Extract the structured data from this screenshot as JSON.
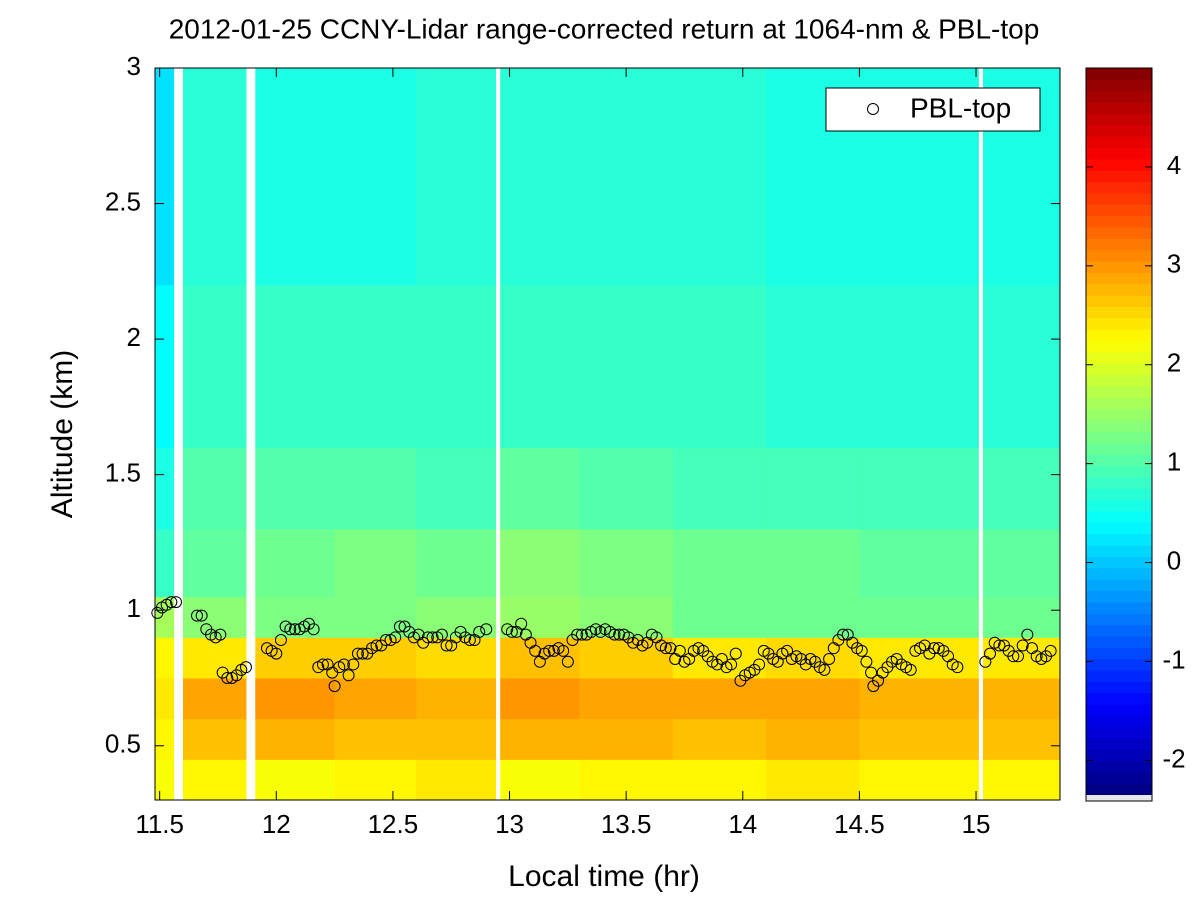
{
  "chart_data": {
    "type": "heatmap",
    "title": "2012-01-25 CCNY-Lidar range-corrected return at 1064-nm & PBL-top",
    "x_label": "Local time (hr)",
    "y_label": "Altitude (km)",
    "xlim": [
      11.48,
      15.36
    ],
    "ylim": [
      0.3,
      3
    ],
    "xticks": [
      11.5,
      12,
      12.5,
      13,
      13.5,
      14,
      14.5,
      15
    ],
    "yticks": [
      0.5,
      1,
      1.5,
      2,
      2.5,
      3
    ],
    "colormap": "jet",
    "legend": "northeast",
    "heatmap": {
      "x_edges": [
        11.48,
        11.56,
        11.6,
        11.87,
        11.91,
        12.25,
        12.6,
        12.94,
        12.96,
        13.3,
        13.7,
        14.1,
        14.5,
        15.01,
        15.03,
        15.36
      ],
      "y_edges": [
        0.3,
        0.45,
        0.6,
        0.75,
        0.9,
        1.05,
        1.3,
        1.6,
        2.2,
        3.0
      ],
      "values": [
        [
          2.2,
          null,
          2.3,
          null,
          2.2,
          2.3,
          2.4,
          null,
          2.2,
          2.3,
          2.3,
          2.4,
          2.3,
          null,
          2.3
        ],
        [
          2.3,
          null,
          2.7,
          null,
          2.8,
          2.7,
          2.7,
          null,
          2.8,
          2.8,
          2.7,
          2.8,
          2.7,
          null,
          2.7
        ],
        [
          2.4,
          null,
          2.9,
          null,
          3.0,
          2.9,
          2.8,
          null,
          3.0,
          2.9,
          2.9,
          2.9,
          2.8,
          null,
          2.8
        ],
        [
          2.3,
          null,
          2.4,
          null,
          2.6,
          2.6,
          2.5,
          null,
          2.7,
          2.6,
          2.4,
          2.5,
          2.4,
          null,
          2.4
        ],
        [
          1.6,
          null,
          1.4,
          null,
          1.3,
          1.3,
          1.4,
          null,
          1.5,
          1.4,
          1.2,
          1.2,
          1.2,
          null,
          1.2
        ],
        [
          0.8,
          null,
          1.1,
          null,
          1.2,
          1.3,
          1.2,
          null,
          1.4,
          1.3,
          1.2,
          1.2,
          1.1,
          null,
          1.1
        ],
        [
          0.6,
          null,
          1.0,
          null,
          1.0,
          1.0,
          0.9,
          null,
          1.1,
          1.0,
          0.9,
          0.9,
          0.9,
          null,
          0.9
        ],
        [
          0.4,
          null,
          0.8,
          null,
          0.8,
          0.8,
          0.8,
          null,
          0.8,
          0.8,
          0.8,
          0.7,
          0.7,
          null,
          0.7
        ],
        [
          0.2,
          null,
          0.7,
          null,
          0.6,
          0.6,
          0.7,
          null,
          0.7,
          0.7,
          0.7,
          0.6,
          0.6,
          null,
          0.6
        ]
      ]
    },
    "colorbar": {
      "clim": [
        -2.35,
        5
      ],
      "ticks": [
        -2,
        -1,
        0,
        1,
        2,
        3,
        4
      ]
    },
    "series": [
      {
        "name": "PBL-top",
        "type": "scatter",
        "color": "#000000",
        "x": [
          11.49,
          11.51,
          11.53,
          11.55,
          11.57,
          11.66,
          11.68,
          11.7,
          11.72,
          11.74,
          11.76,
          11.77,
          11.79,
          11.81,
          11.83,
          11.85,
          11.87,
          11.96,
          11.98,
          12.0,
          12.02,
          12.04,
          12.06,
          12.08,
          12.1,
          12.12,
          12.14,
          12.16,
          12.18,
          12.2,
          12.22,
          12.24,
          12.25,
          12.27,
          12.29,
          12.31,
          12.33,
          12.35,
          12.37,
          12.39,
          12.41,
          12.43,
          12.45,
          12.47,
          12.49,
          12.51,
          12.53,
          12.55,
          12.57,
          12.59,
          12.61,
          12.63,
          12.65,
          12.67,
          12.69,
          12.71,
          12.73,
          12.75,
          12.77,
          12.79,
          12.81,
          12.83,
          12.85,
          12.87,
          12.9,
          12.99,
          13.01,
          13.03,
          13.05,
          13.07,
          13.09,
          13.11,
          13.13,
          13.15,
          13.17,
          13.19,
          13.21,
          13.23,
          13.25,
          13.27,
          13.29,
          13.31,
          13.33,
          13.35,
          13.37,
          13.39,
          13.41,
          13.43,
          13.45,
          13.47,
          13.49,
          13.51,
          13.53,
          13.55,
          13.57,
          13.59,
          13.61,
          13.63,
          13.65,
          13.67,
          13.69,
          13.71,
          13.73,
          13.75,
          13.77,
          13.79,
          13.81,
          13.83,
          13.85,
          13.87,
          13.89,
          13.91,
          13.93,
          13.95,
          13.97,
          13.99,
          14.01,
          14.03,
          14.05,
          14.07,
          14.09,
          14.11,
          14.13,
          14.15,
          14.17,
          14.19,
          14.21,
          14.23,
          14.25,
          14.27,
          14.29,
          14.31,
          14.33,
          14.35,
          14.37,
          14.39,
          14.41,
          14.43,
          14.45,
          14.47,
          14.49,
          14.51,
          14.53,
          14.55,
          14.56,
          14.58,
          14.6,
          14.62,
          14.64,
          14.66,
          14.68,
          14.7,
          14.72,
          14.74,
          14.76,
          14.78,
          14.8,
          14.82,
          14.84,
          14.86,
          14.88,
          14.9,
          14.92,
          15.04,
          15.06,
          15.08,
          15.1,
          15.12,
          15.14,
          15.16,
          15.18,
          15.2,
          15.22,
          15.24,
          15.26,
          15.28,
          15.3,
          15.32
        ],
        "values": [
          0.99,
          1.01,
          1.02,
          1.03,
          1.03,
          0.98,
          0.98,
          0.93,
          0.91,
          0.9,
          0.91,
          0.77,
          0.75,
          0.75,
          0.76,
          0.78,
          0.79,
          0.86,
          0.85,
          0.84,
          0.89,
          0.94,
          0.93,
          0.93,
          0.93,
          0.94,
          0.95,
          0.93,
          0.79,
          0.8,
          0.8,
          0.77,
          0.72,
          0.79,
          0.8,
          0.76,
          0.8,
          0.84,
          0.84,
          0.84,
          0.86,
          0.87,
          0.87,
          0.89,
          0.89,
          0.9,
          0.94,
          0.94,
          0.92,
          0.9,
          0.91,
          0.88,
          0.9,
          0.9,
          0.9,
          0.91,
          0.87,
          0.87,
          0.9,
          0.92,
          0.9,
          0.89,
          0.89,
          0.92,
          0.93,
          0.93,
          0.92,
          0.92,
          0.95,
          0.91,
          0.88,
          0.85,
          0.81,
          0.84,
          0.85,
          0.85,
          0.86,
          0.85,
          0.81,
          0.89,
          0.91,
          0.91,
          0.91,
          0.92,
          0.93,
          0.92,
          0.93,
          0.92,
          0.91,
          0.91,
          0.91,
          0.9,
          0.88,
          0.89,
          0.87,
          0.88,
          0.91,
          0.9,
          0.87,
          0.86,
          0.86,
          0.82,
          0.85,
          0.81,
          0.82,
          0.85,
          0.86,
          0.85,
          0.83,
          0.81,
          0.8,
          0.82,
          0.79,
          0.8,
          0.84,
          0.74,
          0.76,
          0.77,
          0.78,
          0.8,
          0.85,
          0.84,
          0.82,
          0.81,
          0.84,
          0.85,
          0.82,
          0.83,
          0.82,
          0.8,
          0.82,
          0.81,
          0.79,
          0.78,
          0.82,
          0.86,
          0.89,
          0.91,
          0.91,
          0.88,
          0.86,
          0.85,
          0.81,
          0.77,
          0.72,
          0.74,
          0.77,
          0.79,
          0.81,
          0.82,
          0.8,
          0.79,
          0.78,
          0.85,
          0.86,
          0.87,
          0.84,
          0.86,
          0.86,
          0.85,
          0.83,
          0.8,
          0.79,
          0.81,
          0.84,
          0.88,
          0.87,
          0.87,
          0.85,
          0.83,
          0.83,
          0.87,
          0.91,
          0.86,
          0.83,
          0.82,
          0.83,
          0.85
        ]
      }
    ]
  }
}
